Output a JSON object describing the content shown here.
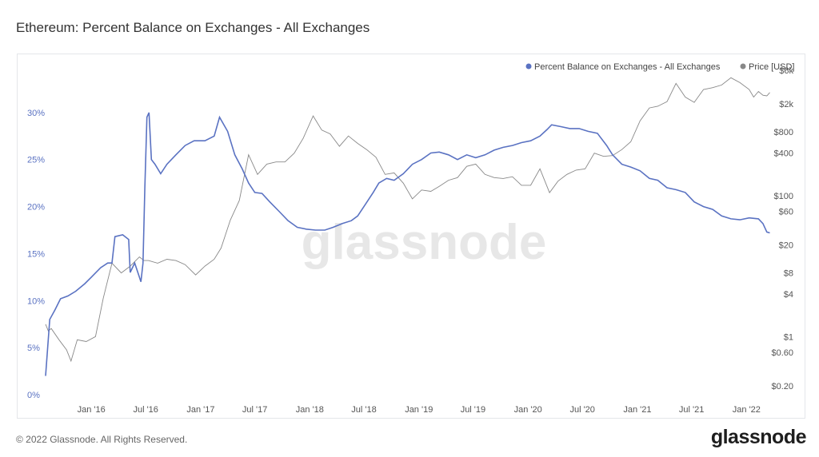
{
  "page": {
    "title": "Ethereum: Percent Balance on Exchanges - All Exchanges",
    "copyright": "© 2022 Glassnode. All Rights Reserved.",
    "logo": "glassnode",
    "watermark": "glassnode"
  },
  "colors": {
    "balance": "#5a72c2",
    "price": "#888888"
  },
  "chart_data": {
    "type": "line",
    "title": "Ethereum: Percent Balance on Exchanges - All Exchanges",
    "x_range": [
      "2015-08-01",
      "2022-04-01"
    ],
    "x_ticks": [
      {
        "label": "Jan '16",
        "date": "2016-01-01"
      },
      {
        "label": "Jul '16",
        "date": "2016-07-01"
      },
      {
        "label": "Jan '17",
        "date": "2017-01-01"
      },
      {
        "label": "Jul '17",
        "date": "2017-07-01"
      },
      {
        "label": "Jan '18",
        "date": "2018-01-01"
      },
      {
        "label": "Jul '18",
        "date": "2018-07-01"
      },
      {
        "label": "Jan '19",
        "date": "2019-01-01"
      },
      {
        "label": "Jul '19",
        "date": "2019-07-01"
      },
      {
        "label": "Jan '20",
        "date": "2020-01-01"
      },
      {
        "label": "Jul '20",
        "date": "2020-07-01"
      },
      {
        "label": "Jan '21",
        "date": "2021-01-01"
      },
      {
        "label": "Jul '21",
        "date": "2021-07-01"
      },
      {
        "label": "Jan '22",
        "date": "2022-01-01"
      }
    ],
    "y_left": {
      "ylim": [
        0,
        35
      ],
      "ticks": [
        {
          "label": "0%",
          "value": 0
        },
        {
          "label": "5%",
          "value": 5
        },
        {
          "label": "10%",
          "value": 10
        },
        {
          "label": "15%",
          "value": 15
        },
        {
          "label": "20%",
          "value": 20
        },
        {
          "label": "25%",
          "value": 25
        },
        {
          "label": "30%",
          "value": 30
        }
      ]
    },
    "y_right": {
      "scale": "log",
      "ylim": [
        0.15,
        7000
      ],
      "ticks": [
        {
          "label": "$0.20",
          "value": 0.2
        },
        {
          "label": "$0.60",
          "value": 0.6
        },
        {
          "label": "$1",
          "value": 1
        },
        {
          "label": "$4",
          "value": 4
        },
        {
          "label": "$8",
          "value": 8
        },
        {
          "label": "$20",
          "value": 20
        },
        {
          "label": "$60",
          "value": 60
        },
        {
          "label": "$100",
          "value": 100
        },
        {
          "label": "$400",
          "value": 400
        },
        {
          "label": "$800",
          "value": 800
        },
        {
          "label": "$2k",
          "value": 2000
        },
        {
          "label": "$6k",
          "value": 6000
        }
      ]
    },
    "legend_position": "top-right",
    "grid": false,
    "series": [
      {
        "name": "Percent Balance on Exchanges - All Exchanges",
        "axis": "left",
        "points": [
          [
            "2015-08-01",
            2.0
          ],
          [
            "2015-08-15",
            8.0
          ],
          [
            "2015-09-01",
            9.0
          ],
          [
            "2015-09-20",
            10.2
          ],
          [
            "2015-10-15",
            10.5
          ],
          [
            "2015-11-10",
            11.0
          ],
          [
            "2015-12-10",
            11.8
          ],
          [
            "2016-01-01",
            12.5
          ],
          [
            "2016-02-01",
            13.5
          ],
          [
            "2016-02-25",
            14.0
          ],
          [
            "2016-03-10",
            14.0
          ],
          [
            "2016-03-20",
            16.8
          ],
          [
            "2016-04-15",
            17.0
          ],
          [
            "2016-05-05",
            16.5
          ],
          [
            "2016-05-10",
            13.0
          ],
          [
            "2016-05-25",
            14.0
          ],
          [
            "2016-06-10",
            12.5
          ],
          [
            "2016-06-15",
            12.0
          ],
          [
            "2016-06-22",
            14.0
          ],
          [
            "2016-06-28",
            22.0
          ],
          [
            "2016-07-05",
            29.5
          ],
          [
            "2016-07-12",
            30.0
          ],
          [
            "2016-07-20",
            25.0
          ],
          [
            "2016-08-01",
            24.5
          ],
          [
            "2016-08-20",
            23.5
          ],
          [
            "2016-09-10",
            24.5
          ],
          [
            "2016-10-10",
            25.5
          ],
          [
            "2016-11-10",
            26.5
          ],
          [
            "2016-12-10",
            27.0
          ],
          [
            "2017-01-15",
            27.0
          ],
          [
            "2017-02-15",
            27.5
          ],
          [
            "2017-03-05",
            29.5
          ],
          [
            "2017-04-01",
            28.0
          ],
          [
            "2017-04-25",
            25.5
          ],
          [
            "2017-05-20",
            24.0
          ],
          [
            "2017-06-10",
            22.5
          ],
          [
            "2017-07-01",
            21.5
          ],
          [
            "2017-07-25",
            21.4
          ],
          [
            "2017-08-20",
            20.5
          ],
          [
            "2017-09-20",
            19.5
          ],
          [
            "2017-10-20",
            18.5
          ],
          [
            "2017-11-20",
            17.8
          ],
          [
            "2017-12-20",
            17.6
          ],
          [
            "2018-01-20",
            17.5
          ],
          [
            "2018-02-20",
            17.5
          ],
          [
            "2018-03-20",
            17.8
          ],
          [
            "2018-04-20",
            18.2
          ],
          [
            "2018-05-20",
            18.5
          ],
          [
            "2018-06-10",
            19.0
          ],
          [
            "2018-07-01",
            20.0
          ],
          [
            "2018-08-01",
            21.5
          ],
          [
            "2018-08-20",
            22.5
          ],
          [
            "2018-09-15",
            23.0
          ],
          [
            "2018-10-10",
            22.8
          ],
          [
            "2018-11-10",
            23.5
          ],
          [
            "2018-12-10",
            24.5
          ],
          [
            "2019-01-10",
            25.0
          ],
          [
            "2019-02-10",
            25.7
          ],
          [
            "2019-03-10",
            25.8
          ],
          [
            "2019-04-10",
            25.5
          ],
          [
            "2019-05-10",
            25.0
          ],
          [
            "2019-06-10",
            25.5
          ],
          [
            "2019-07-10",
            25.2
          ],
          [
            "2019-08-10",
            25.5
          ],
          [
            "2019-09-10",
            26.0
          ],
          [
            "2019-10-10",
            26.3
          ],
          [
            "2019-11-10",
            26.5
          ],
          [
            "2019-12-10",
            26.8
          ],
          [
            "2020-01-10",
            27.0
          ],
          [
            "2020-02-10",
            27.5
          ],
          [
            "2020-03-05",
            28.2
          ],
          [
            "2020-03-20",
            28.7
          ],
          [
            "2020-04-20",
            28.5
          ],
          [
            "2020-05-20",
            28.3
          ],
          [
            "2020-06-20",
            28.3
          ],
          [
            "2020-07-20",
            28.0
          ],
          [
            "2020-08-20",
            27.8
          ],
          [
            "2020-09-20",
            26.5
          ],
          [
            "2020-10-10",
            25.5
          ],
          [
            "2020-11-10",
            24.5
          ],
          [
            "2020-12-10",
            24.2
          ],
          [
            "2021-01-10",
            23.8
          ],
          [
            "2021-02-10",
            23.0
          ],
          [
            "2021-03-10",
            22.8
          ],
          [
            "2021-04-10",
            22.0
          ],
          [
            "2021-05-10",
            21.8
          ],
          [
            "2021-06-10",
            21.5
          ],
          [
            "2021-07-10",
            20.5
          ],
          [
            "2021-08-10",
            20.0
          ],
          [
            "2021-09-10",
            19.7
          ],
          [
            "2021-10-10",
            19.0
          ],
          [
            "2021-11-10",
            18.7
          ],
          [
            "2021-12-10",
            18.6
          ],
          [
            "2022-01-10",
            18.8
          ],
          [
            "2022-02-10",
            18.7
          ],
          [
            "2022-02-25",
            18.2
          ],
          [
            "2022-03-10",
            17.3
          ],
          [
            "2022-03-20",
            17.2
          ]
        ]
      },
      {
        "name": "Price [USD]",
        "axis": "right",
        "points": [
          [
            "2015-08-01",
            1.5
          ],
          [
            "2015-08-10",
            1.2
          ],
          [
            "2015-08-20",
            1.3
          ],
          [
            "2015-09-15",
            0.9
          ],
          [
            "2015-10-10",
            0.65
          ],
          [
            "2015-10-25",
            0.45
          ],
          [
            "2015-11-15",
            0.9
          ],
          [
            "2015-12-15",
            0.85
          ],
          [
            "2016-01-15",
            1.0
          ],
          [
            "2016-02-10",
            3.5
          ],
          [
            "2016-03-10",
            11.0
          ],
          [
            "2016-04-10",
            8.0
          ],
          [
            "2016-05-10",
            10.0
          ],
          [
            "2016-06-10",
            13.5
          ],
          [
            "2016-06-25",
            12.0
          ],
          [
            "2016-07-10",
            12.0
          ],
          [
            "2016-08-10",
            11.0
          ],
          [
            "2016-09-10",
            12.5
          ],
          [
            "2016-10-10",
            12.0
          ],
          [
            "2016-11-10",
            10.5
          ],
          [
            "2016-12-15",
            7.5
          ],
          [
            "2017-01-15",
            10.0
          ],
          [
            "2017-02-15",
            12.5
          ],
          [
            "2017-03-10",
            18.0
          ],
          [
            "2017-04-10",
            45.0
          ],
          [
            "2017-05-10",
            85.0
          ],
          [
            "2017-06-10",
            380.0
          ],
          [
            "2017-07-10",
            200.0
          ],
          [
            "2017-08-10",
            280.0
          ],
          [
            "2017-09-10",
            300.0
          ],
          [
            "2017-10-10",
            300.0
          ],
          [
            "2017-11-10",
            400.0
          ],
          [
            "2017-12-10",
            650.0
          ],
          [
            "2018-01-12",
            1350.0
          ],
          [
            "2018-02-10",
            850.0
          ],
          [
            "2018-03-10",
            750.0
          ],
          [
            "2018-04-10",
            500.0
          ],
          [
            "2018-05-10",
            700.0
          ],
          [
            "2018-06-10",
            550.0
          ],
          [
            "2018-07-10",
            450.0
          ],
          [
            "2018-08-10",
            350.0
          ],
          [
            "2018-09-10",
            200.0
          ],
          [
            "2018-10-10",
            210.0
          ],
          [
            "2018-11-10",
            150.0
          ],
          [
            "2018-12-10",
            90.0
          ],
          [
            "2019-01-10",
            120.0
          ],
          [
            "2019-02-10",
            115.0
          ],
          [
            "2019-03-10",
            135.0
          ],
          [
            "2019-04-10",
            165.0
          ],
          [
            "2019-05-10",
            180.0
          ],
          [
            "2019-06-10",
            260.0
          ],
          [
            "2019-07-10",
            280.0
          ],
          [
            "2019-08-10",
            200.0
          ],
          [
            "2019-09-10",
            180.0
          ],
          [
            "2019-10-10",
            175.0
          ],
          [
            "2019-11-10",
            185.0
          ],
          [
            "2019-12-10",
            140.0
          ],
          [
            "2020-01-10",
            140.0
          ],
          [
            "2020-02-10",
            240.0
          ],
          [
            "2020-03-13",
            110.0
          ],
          [
            "2020-04-10",
            160.0
          ],
          [
            "2020-05-10",
            200.0
          ],
          [
            "2020-06-10",
            230.0
          ],
          [
            "2020-07-10",
            240.0
          ],
          [
            "2020-08-10",
            400.0
          ],
          [
            "2020-09-10",
            360.0
          ],
          [
            "2020-10-10",
            370.0
          ],
          [
            "2020-11-10",
            450.0
          ],
          [
            "2020-12-10",
            580.0
          ],
          [
            "2021-01-10",
            1150.0
          ],
          [
            "2021-02-10",
            1750.0
          ],
          [
            "2021-03-10",
            1850.0
          ],
          [
            "2021-04-10",
            2150.0
          ],
          [
            "2021-05-10",
            3900.0
          ],
          [
            "2021-06-10",
            2500.0
          ],
          [
            "2021-07-10",
            2100.0
          ],
          [
            "2021-08-10",
            3200.0
          ],
          [
            "2021-09-10",
            3400.0
          ],
          [
            "2021-10-10",
            3700.0
          ],
          [
            "2021-11-10",
            4700.0
          ],
          [
            "2021-12-10",
            4000.0
          ],
          [
            "2022-01-10",
            3200.0
          ],
          [
            "2022-01-25",
            2500.0
          ],
          [
            "2022-02-10",
            3000.0
          ],
          [
            "2022-02-25",
            2650.0
          ],
          [
            "2022-03-10",
            2600.0
          ],
          [
            "2022-03-20",
            2900.0
          ]
        ]
      }
    ]
  }
}
